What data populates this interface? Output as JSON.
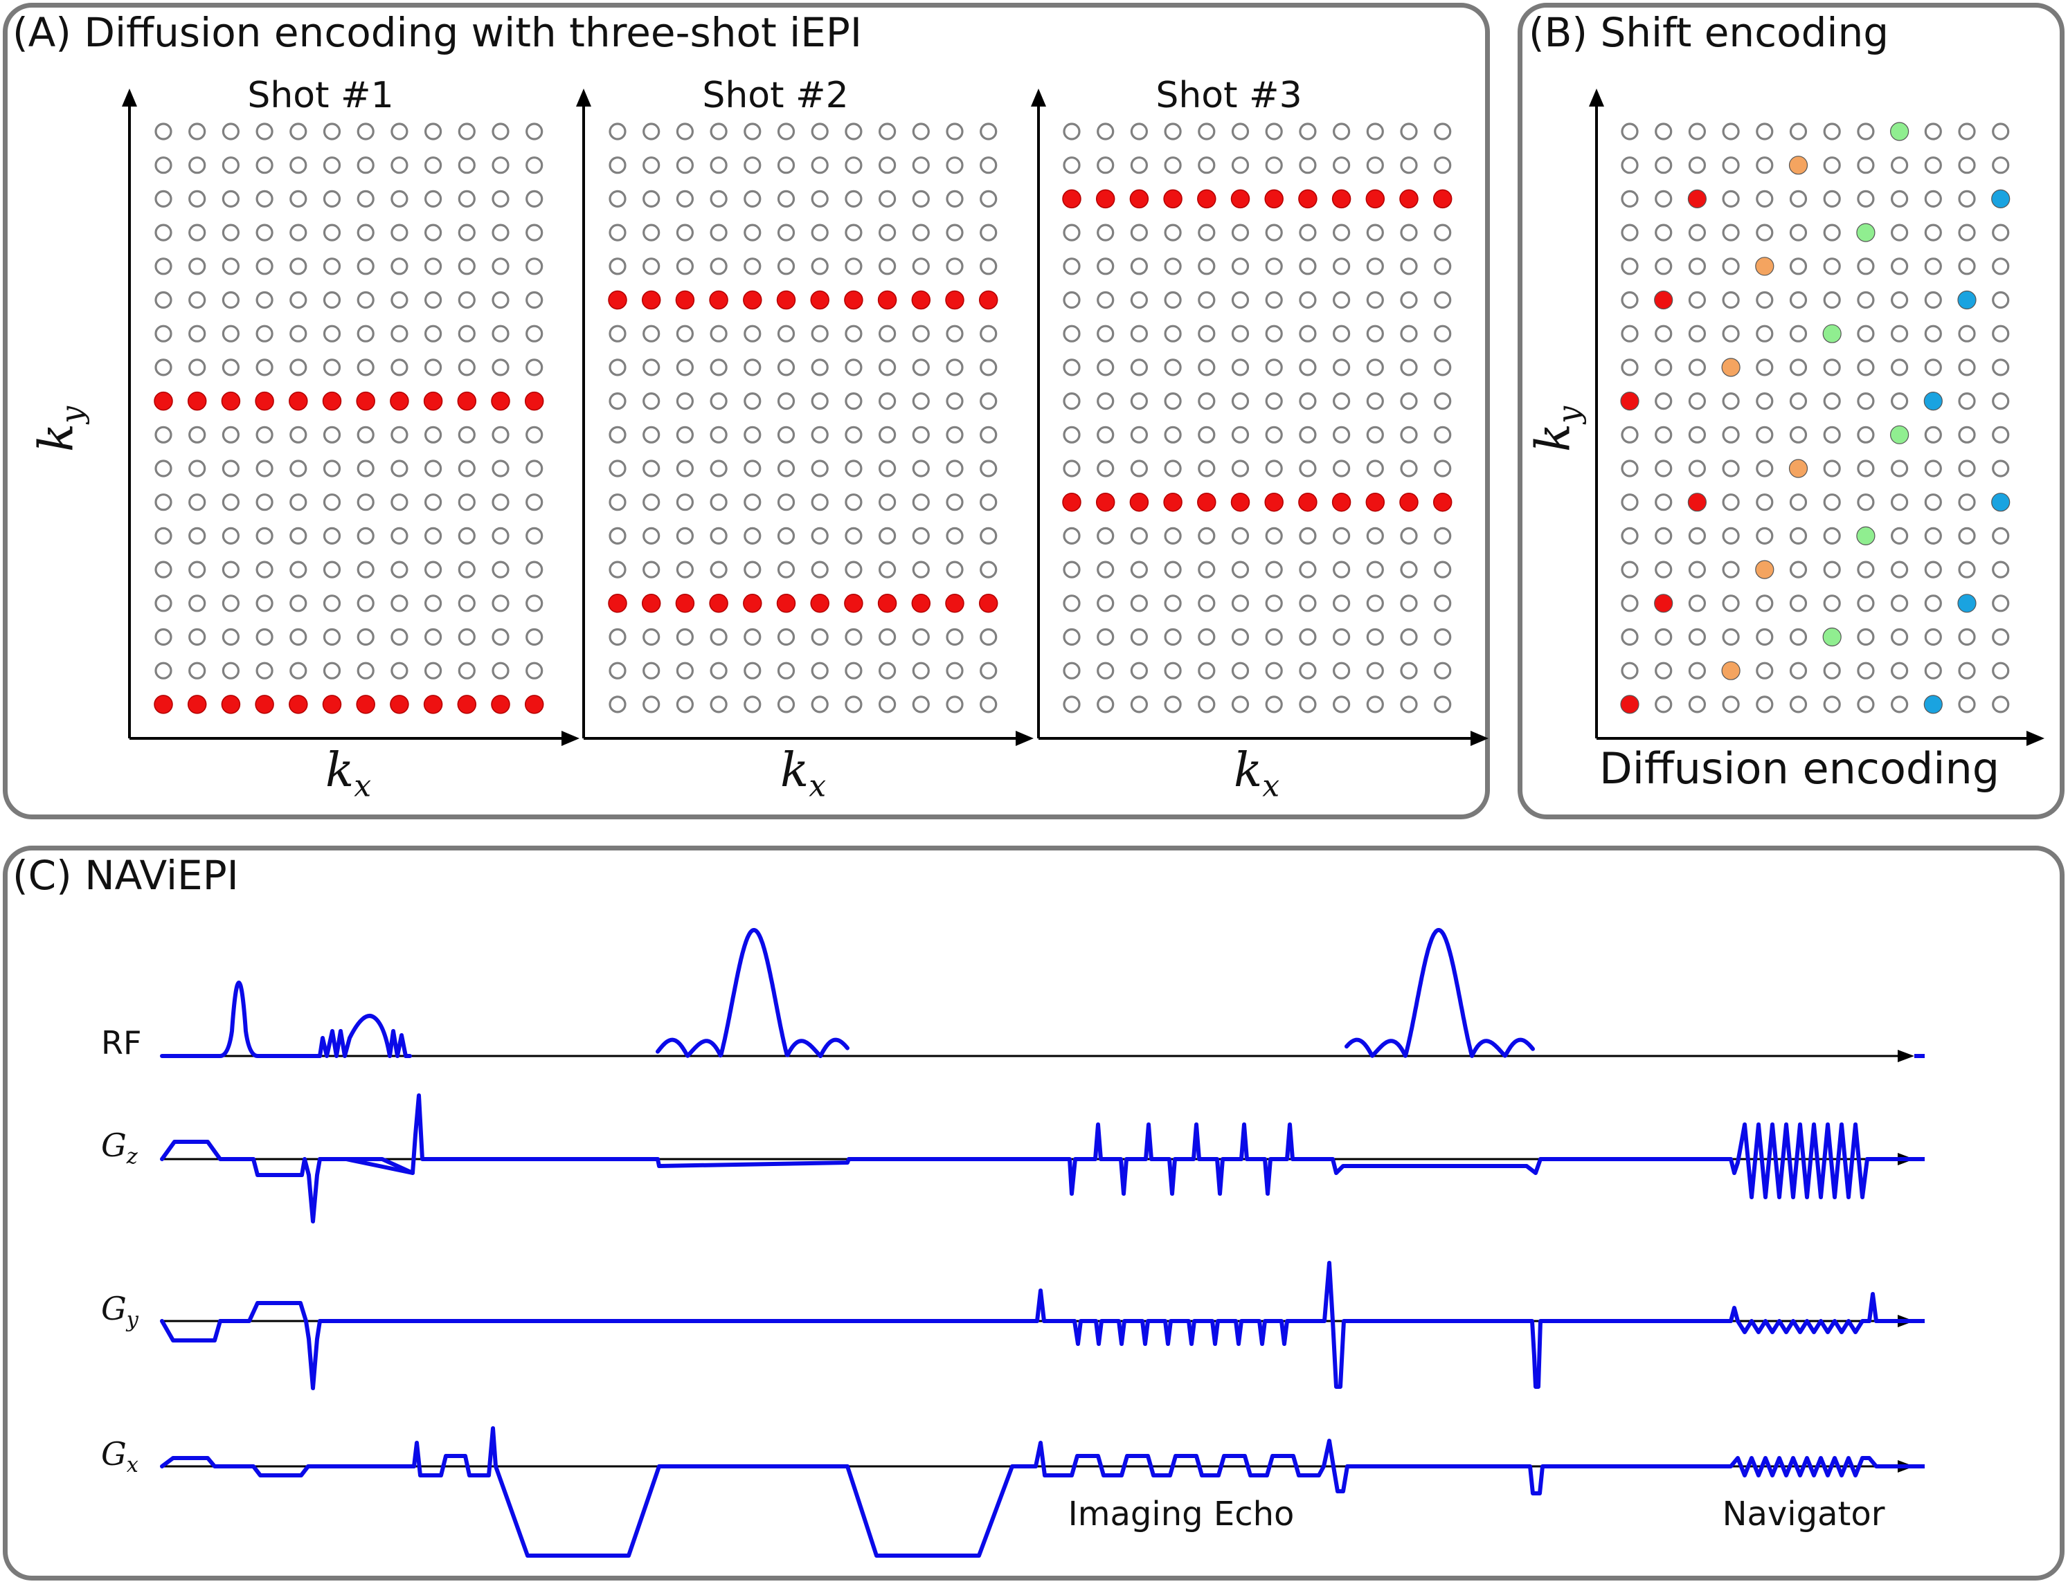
{
  "panel_a": {
    "title": "(A) Diffusion encoding with three-shot iEPI",
    "y_axis_label": "k",
    "y_axis_sub": "y",
    "shots": [
      {
        "title": "Shot #1",
        "x_axis_label": "k",
        "x_axis_sub": "x",
        "filled_rows": [
          8,
          17
        ]
      },
      {
        "title": "Shot #2",
        "x_axis_label": "k",
        "x_axis_sub": "x",
        "filled_rows": [
          5,
          14
        ]
      },
      {
        "title": "Shot #3",
        "x_axis_label": "k",
        "x_axis_sub": "x",
        "filled_rows": [
          2,
          11
        ]
      }
    ],
    "grid_rows": 18,
    "grid_cols": 12
  },
  "panel_b": {
    "title": "(B) Shift encoding",
    "y_axis_label": "k",
    "y_axis_sub": "y",
    "x_axis_label": "Diffusion encoding",
    "grid_rows": 18,
    "grid_cols": 12,
    "filled_points": [
      {
        "row": 0,
        "col": 8,
        "color": "#90ee90"
      },
      {
        "row": 1,
        "col": 5,
        "color": "#f4a460"
      },
      {
        "row": 2,
        "col": 2,
        "color": "#ee1111"
      },
      {
        "row": 2,
        "col": 11,
        "color": "#1aa3e0"
      },
      {
        "row": 3,
        "col": 7,
        "color": "#90ee90"
      },
      {
        "row": 4,
        "col": 4,
        "color": "#f4a460"
      },
      {
        "row": 5,
        "col": 1,
        "color": "#ee1111"
      },
      {
        "row": 5,
        "col": 10,
        "color": "#1aa3e0"
      },
      {
        "row": 6,
        "col": 6,
        "color": "#90ee90"
      },
      {
        "row": 7,
        "col": 3,
        "color": "#f4a460"
      },
      {
        "row": 8,
        "col": 0,
        "color": "#ee1111"
      },
      {
        "row": 8,
        "col": 9,
        "color": "#1aa3e0"
      },
      {
        "row": 9,
        "col": 8,
        "color": "#90ee90"
      },
      {
        "row": 10,
        "col": 5,
        "color": "#f4a460"
      },
      {
        "row": 11,
        "col": 2,
        "color": "#ee1111"
      },
      {
        "row": 11,
        "col": 11,
        "color": "#1aa3e0"
      },
      {
        "row": 12,
        "col": 7,
        "color": "#90ee90"
      },
      {
        "row": 13,
        "col": 4,
        "color": "#f4a460"
      },
      {
        "row": 14,
        "col": 1,
        "color": "#ee1111"
      },
      {
        "row": 14,
        "col": 10,
        "color": "#1aa3e0"
      },
      {
        "row": 15,
        "col": 6,
        "color": "#90ee90"
      },
      {
        "row": 16,
        "col": 3,
        "color": "#f4a460"
      },
      {
        "row": 17,
        "col": 0,
        "color": "#ee1111"
      },
      {
        "row": 17,
        "col": 9,
        "color": "#1aa3e0"
      }
    ]
  },
  "panel_c": {
    "title": "(C) NAViEPI",
    "channels": {
      "rf": "RF",
      "gz": "G",
      "gz_sub": "z",
      "gy": "G",
      "gy_sub": "y",
      "gx": "G",
      "gx_sub": "x"
    },
    "segments": {
      "imaging_echo": "Imaging Echo",
      "navigator": "Navigator"
    }
  },
  "colors": {
    "frame": "#7a7a7a",
    "filled_kspace": "#ee1111",
    "empty_kspace": "#808080",
    "waveform": "#0a0ae8",
    "axis": "#000000"
  }
}
